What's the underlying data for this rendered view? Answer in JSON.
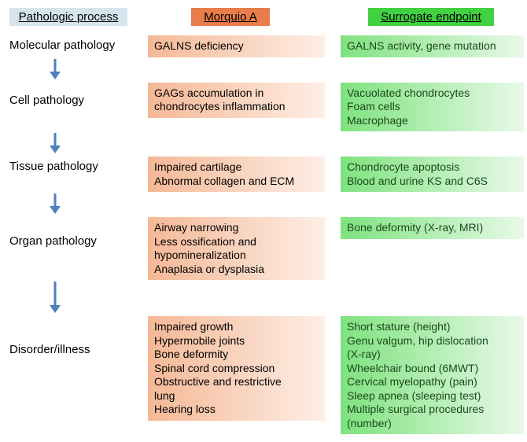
{
  "headers": {
    "process": "Pathologic process",
    "morquio": "Morquio A",
    "surrogate": "Surrogate endpoint"
  },
  "header_colors": {
    "process_bg": "#d6e4ed",
    "morquio_bg": "#e87c4b",
    "surrogate_bg": "#42d142"
  },
  "box_gradients": {
    "morquio_from": "#f5b896",
    "morquio_to": "#fdeee5",
    "surrogate_from": "#7fe27f",
    "surrogate_to": "#e8f9e8"
  },
  "arrow_color": "#4f81bd",
  "rows": [
    {
      "process": "Molecular pathology",
      "morquio": [
        "GALNS deficiency"
      ],
      "surrogate": [
        "GALNS activity, gene mutation"
      ]
    },
    {
      "process": "Cell pathology",
      "morquio": [
        "GAGs accumulation in",
        "chondrocytes inflammation"
      ],
      "surrogate": [
        "Vacuolated chondrocytes",
        "Foam cells",
        "Macrophage"
      ]
    },
    {
      "process": "Tissue pathology",
      "morquio": [
        "Impaired cartilage",
        "Abnormal collagen and ECM"
      ],
      "surrogate": [
        "Chondrocyte apoptosis",
        "Blood and urine KS and C6S"
      ]
    },
    {
      "process": "Organ pathology",
      "morquio": [
        "Airway narrowing",
        "Less ossification and",
        "hypomineralization",
        "Anaplasia or dysplasia"
      ],
      "surrogate": [
        "Bone deformity (X-ray, MRI)"
      ]
    },
    {
      "process": "Disorder/illness",
      "morquio": [
        "Impaired growth",
        "Hypermobile joints",
        "Bone deformity",
        "Spinal cord compression",
        "Obstructive and restrictive",
        "lung",
        "Hearing loss"
      ],
      "surrogate": [
        "Short stature (height)",
        "Genu valgum, hip dislocation",
        "(X-ray)",
        "Wheelchair bound (6MWT)",
        "Cervical myelopathy (pain)",
        "Sleep apnea (sleeping test)",
        "Multiple surgical procedures",
        "(number)"
      ]
    }
  ],
  "fontsize": {
    "header": 15,
    "process_label": 15,
    "box_text": 14
  }
}
